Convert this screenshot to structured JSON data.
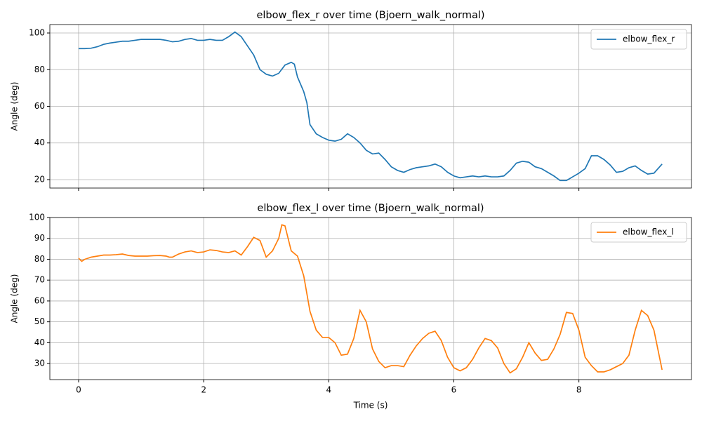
{
  "chart_data": [
    {
      "type": "line",
      "title": "elbow_flex_r over time (Bjoern_walk_normal)",
      "y_label": "Angle (deg)",
      "x": [
        0,
        0.1,
        0.2,
        0.3,
        0.4,
        0.5,
        0.6,
        0.7,
        0.8,
        0.9,
        1.0,
        1.1,
        1.2,
        1.3,
        1.4,
        1.5,
        1.6,
        1.7,
        1.8,
        1.9,
        2.0,
        2.1,
        2.2,
        2.3,
        2.4,
        2.5,
        2.6,
        2.7,
        2.8,
        2.9,
        3.0,
        3.1,
        3.2,
        3.3,
        3.4,
        3.45,
        3.5,
        3.6,
        3.65,
        3.7,
        3.8,
        3.9,
        4.0,
        4.1,
        4.2,
        4.3,
        4.4,
        4.5,
        4.6,
        4.7,
        4.8,
        4.9,
        5.0,
        5.1,
        5.2,
        5.3,
        5.4,
        5.5,
        5.6,
        5.7,
        5.8,
        5.9,
        6.0,
        6.1,
        6.2,
        6.3,
        6.4,
        6.5,
        6.6,
        6.7,
        6.8,
        6.9,
        7.0,
        7.1,
        7.2,
        7.3,
        7.4,
        7.5,
        7.6,
        7.7,
        7.8,
        7.9,
        8.0,
        8.1,
        8.2,
        8.3,
        8.4,
        8.5,
        8.6,
        8.7,
        8.8,
        8.9,
        9.0,
        9.1,
        9.2,
        9.33
      ],
      "series": [
        {
          "name": "elbow_flex_r",
          "color": "#1f77b4",
          "values": [
            91.5,
            91.5,
            91.7,
            92.5,
            93.8,
            94.5,
            95,
            95.5,
            95.5,
            96,
            96.5,
            96.5,
            96.5,
            96.5,
            96,
            95.2,
            95.5,
            96.5,
            97,
            96,
            96,
            96.5,
            96,
            96,
            98,
            100.5,
            98,
            93,
            88,
            80,
            77.5,
            76.5,
            78,
            82.5,
            84,
            83,
            76,
            68,
            62,
            50,
            45,
            43,
            41.5,
            41,
            42,
            45,
            43,
            40,
            36,
            34,
            34.5,
            31,
            27,
            25,
            24,
            25.5,
            26.5,
            27,
            27.5,
            28.5,
            27,
            24,
            22,
            21,
            21.5,
            22,
            21.5,
            22,
            21.5,
            21.5,
            22,
            25,
            29,
            30,
            29.5,
            27,
            26,
            24,
            22,
            19.5,
            19.5,
            21.5,
            23.5,
            26,
            33,
            33,
            31,
            28,
            24,
            24.5,
            26.5,
            27.5,
            25,
            23,
            23.5,
            28.5
          ]
        }
      ],
      "xlim": [
        -0.46,
        9.8
      ],
      "xticks": [
        0,
        2,
        4,
        6,
        8
      ],
      "ylim": [
        15.4,
        104.6
      ],
      "yticks": [
        20,
        40,
        60,
        80,
        100
      ],
      "grid": true,
      "legend": "upper-right"
    },
    {
      "type": "line",
      "title": "elbow_flex_l over time (Bjoern_walk_normal)",
      "x_label": "Time (s)",
      "y_label": "Angle (deg)",
      "x": [
        0,
        0.05,
        0.1,
        0.2,
        0.3,
        0.4,
        0.5,
        0.6,
        0.7,
        0.8,
        0.9,
        1.0,
        1.1,
        1.2,
        1.3,
        1.4,
        1.45,
        1.5,
        1.6,
        1.7,
        1.8,
        1.9,
        2.0,
        2.1,
        2.2,
        2.3,
        2.4,
        2.5,
        2.6,
        2.7,
        2.8,
        2.9,
        3.0,
        3.1,
        3.2,
        3.25,
        3.3,
        3.4,
        3.5,
        3.6,
        3.7,
        3.8,
        3.9,
        4.0,
        4.1,
        4.2,
        4.3,
        4.4,
        4.5,
        4.6,
        4.7,
        4.8,
        4.9,
        5.0,
        5.1,
        5.2,
        5.3,
        5.4,
        5.5,
        5.6,
        5.7,
        5.8,
        5.9,
        6.0,
        6.1,
        6.2,
        6.3,
        6.4,
        6.5,
        6.6,
        6.7,
        6.8,
        6.9,
        7.0,
        7.1,
        7.2,
        7.3,
        7.4,
        7.5,
        7.6,
        7.7,
        7.8,
        7.9,
        8.0,
        8.1,
        8.2,
        8.3,
        8.4,
        8.5,
        8.6,
        8.7,
        8.8,
        8.9,
        9.0,
        9.1,
        9.2,
        9.33
      ],
      "series": [
        {
          "name": "elbow_flex_l",
          "color": "#ff7f0e",
          "values": [
            80.5,
            79,
            80,
            81,
            81.5,
            82,
            82,
            82.2,
            82.5,
            81.8,
            81.5,
            81.5,
            81.5,
            81.7,
            81.8,
            81.5,
            81,
            81,
            82.5,
            83.5,
            84,
            83.2,
            83.5,
            84.5,
            84.2,
            83.5,
            83.2,
            84,
            82,
            86,
            90.5,
            89,
            81,
            84,
            90,
            96.5,
            96,
            84,
            81.5,
            72,
            55,
            46,
            42.5,
            42.5,
            40,
            34,
            34.5,
            42,
            55.5,
            50,
            37,
            31,
            28,
            29,
            29,
            28.5,
            34,
            38.5,
            42,
            44.5,
            45.5,
            41,
            33,
            28,
            26.5,
            28,
            32,
            37.5,
            42,
            41,
            37.5,
            30,
            25.5,
            27.5,
            33,
            40,
            35,
            31.5,
            32,
            37,
            44,
            54.5,
            54,
            46,
            33,
            29,
            26,
            26,
            27,
            28.5,
            30,
            34,
            46,
            55.5,
            53,
            46,
            27
          ]
        }
      ],
      "xlim": [
        -0.46,
        9.8
      ],
      "xticks": [
        0,
        2,
        4,
        6,
        8
      ],
      "ylim": [
        22.3,
        100
      ],
      "yticks": [
        30,
        40,
        50,
        60,
        70,
        80,
        90,
        100
      ],
      "grid": true,
      "legend": "upper-right"
    }
  ]
}
